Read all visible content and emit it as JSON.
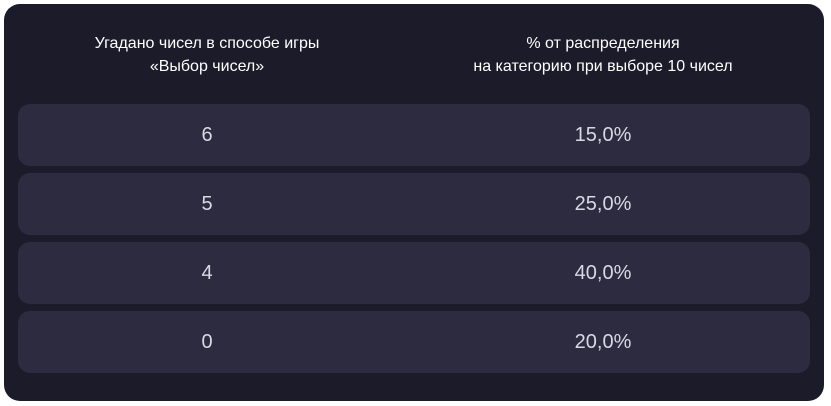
{
  "table": {
    "headers": [
      "Угадано чисел в способе игры\n«Выбор чисел»",
      "% от распределения\nна категорию при выборе 10 чисел"
    ],
    "rows": [
      {
        "guessed": "6",
        "percent": "15,0%"
      },
      {
        "guessed": "5",
        "percent": "25,0%"
      },
      {
        "guessed": "4",
        "percent": "40,0%"
      },
      {
        "guessed": "0",
        "percent": "20,0%"
      }
    ]
  }
}
